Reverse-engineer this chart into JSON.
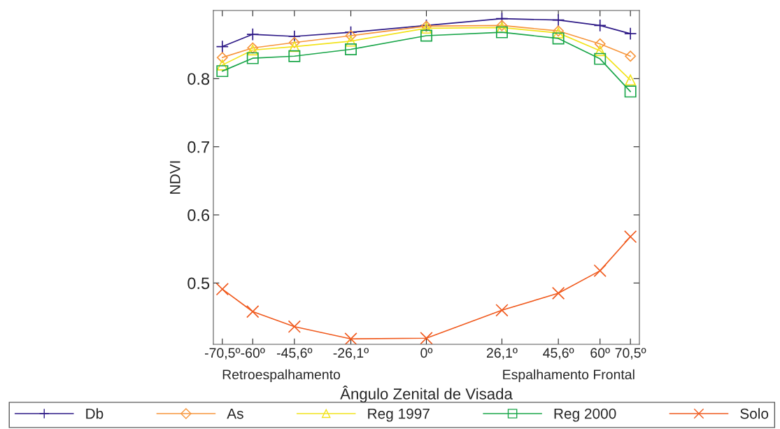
{
  "chart_data": {
    "type": "line",
    "xlabel": "Ângulo Zenital de Visada",
    "ylabel": "NDVI",
    "x": [
      -70.5,
      -60,
      -45.6,
      -26.1,
      0,
      26.1,
      45.6,
      60,
      70.5
    ],
    "xlim": [
      -73.6,
      73.6
    ],
    "xticks": [
      {
        "value": -70.5,
        "label": "-70,5º"
      },
      {
        "value": -60,
        "label": "-60º"
      },
      {
        "value": -45.6,
        "label": "-45,6º"
      },
      {
        "value": -26.1,
        "label": "-26,1º"
      },
      {
        "value": 0,
        "label": "0º"
      },
      {
        "value": 26.1,
        "label": "26,1º"
      },
      {
        "value": 45.6,
        "label": "45,6º"
      },
      {
        "value": 60,
        "label": "60º"
      },
      {
        "value": 70.5,
        "label": "70,5º"
      }
    ],
    "ylim": [
      0.41,
      0.9
    ],
    "yticks": [
      0.5,
      0.6,
      0.7,
      0.8
    ],
    "series": [
      {
        "name": "Db",
        "color": "#2e1a87",
        "marker": "cross",
        "values": [
          0.847,
          0.865,
          0.862,
          0.868,
          0.878,
          0.888,
          0.886,
          0.878,
          0.866
        ]
      },
      {
        "name": "As",
        "color": "#f7963c",
        "marker": "diamond",
        "values": [
          0.831,
          0.845,
          0.853,
          0.863,
          0.877,
          0.878,
          0.87,
          0.851,
          0.833
        ]
      },
      {
        "name": "Reg 1997",
        "color": "#f2e31c",
        "marker": "triangle",
        "values": [
          0.82,
          0.842,
          0.847,
          0.855,
          0.874,
          0.875,
          0.867,
          0.841,
          0.798
        ]
      },
      {
        "name": "Reg 2000",
        "color": "#1aa64a",
        "marker": "square",
        "values": [
          0.811,
          0.83,
          0.833,
          0.843,
          0.863,
          0.868,
          0.859,
          0.829,
          0.781
        ]
      },
      {
        "name": "Solo",
        "color": "#f05a1e",
        "marker": "x",
        "values": [
          0.491,
          0.458,
          0.436,
          0.418,
          0.419,
          0.46,
          0.485,
          0.518,
          0.568
        ]
      }
    ],
    "annotations": [
      "Retroespalhamento",
      "Espalhamento Frontal"
    ],
    "legend": "bottom",
    "grid": false
  }
}
